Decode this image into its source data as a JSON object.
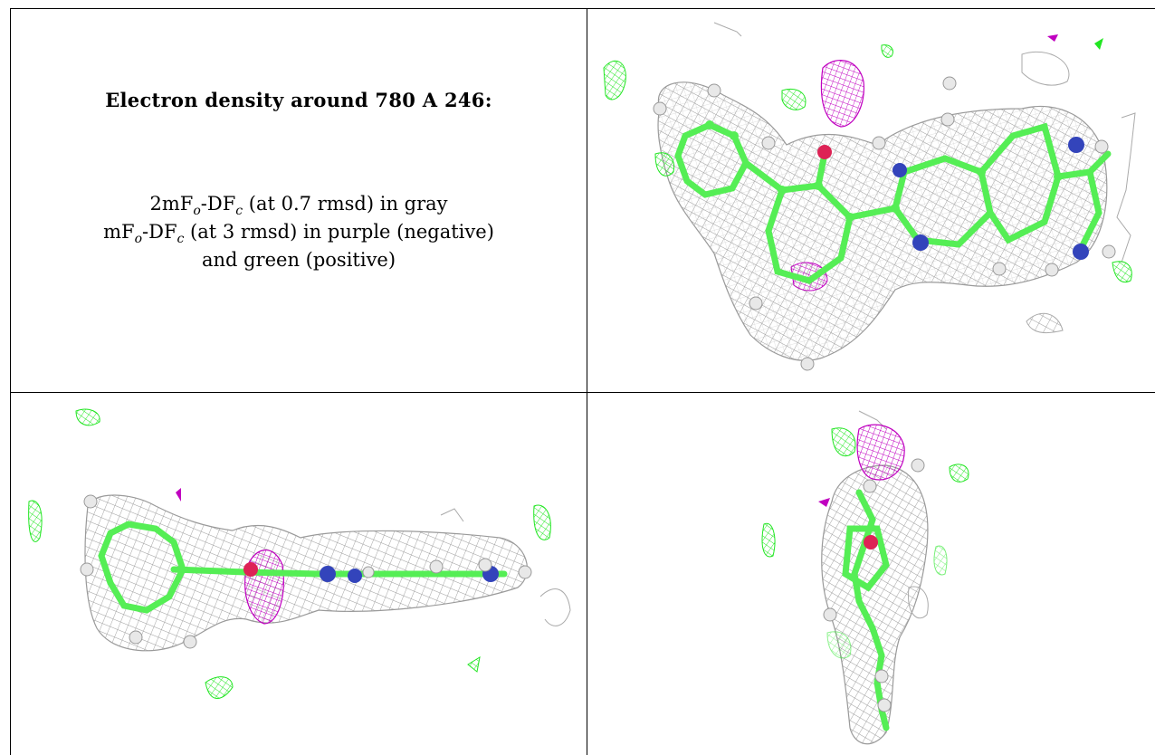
{
  "panel_text": {
    "title": "Electron density around 780 A 246:",
    "map1_prefix": "2mF",
    "map1_sub1": "o",
    "map1_mid": "-DF",
    "map1_sub2": "c",
    "map1_suffix": " (at 0.7 rmsd) in gray",
    "map2_prefix": "mF",
    "map2_sub1": "o",
    "map2_mid": "-DF",
    "map2_sub2": "c",
    "map2_suffix": " (at 3 rmsd) in purple (negative)",
    "map2_line2": "and green (positive)"
  },
  "colors": {
    "mesh_gray": "#a9a9a9",
    "difference_negative": "#c000c0",
    "difference_positive": "#22e622",
    "carbon": "#55ee55",
    "nitrogen": "#3344bb",
    "oxygen": "#dd2255",
    "hydrogen": "#e8e8e8"
  },
  "views": [
    {
      "name": "top-view"
    },
    {
      "name": "side-view"
    },
    {
      "name": "end-view"
    }
  ]
}
